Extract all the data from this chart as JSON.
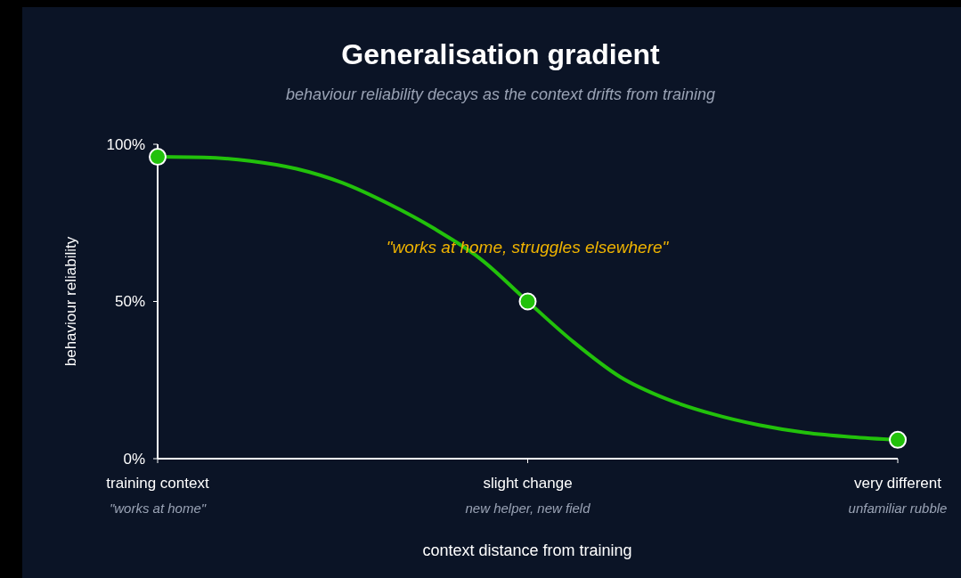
{
  "chart_data": {
    "type": "line",
    "title": "Generalisation gradient",
    "subtitle": "behaviour reliability decays as the context drifts from training",
    "xlabel": "context distance from training",
    "ylabel": "behaviour reliability",
    "categories": [
      "training context$_{\"works at home\"}$",
      null,
      null,
      null,
      null,
      null,
      null,
      null,
      "slight change$_{new helper, new field}$",
      null,
      null,
      null,
      null,
      null,
      null,
      null,
      "very different$_{unfamiliar rubble}$"
    ],
    "ylim": [
      0,
      100
    ],
    "yticks": [
      {
        "value": 0,
        "label": "0%"
      },
      {
        "value": 50,
        "label": "50%"
      },
      {
        "value": 100,
        "label": "100%"
      }
    ],
    "series": [
      {
        "color": "#22c10b",
        "marker": "none",
        "values": [
          96,
          95.8,
          94.7,
          92.2,
          87.7,
          81,
          73,
          63.3,
          50,
          37,
          26,
          19,
          14.2,
          10.7,
          8.3,
          6.9,
          6
        ]
      },
      {
        "type": "scatter",
        "color": "#22c10b",
        "marker": "circle",
        "values": [
          96,
          null,
          null,
          null,
          null,
          null,
          null,
          null,
          50,
          null,
          null,
          null,
          null,
          null,
          null,
          null,
          6
        ]
      }
    ],
    "annotations": [
      "\"works at home, struggles elsewhere\""
    ],
    "grid": false
  }
}
